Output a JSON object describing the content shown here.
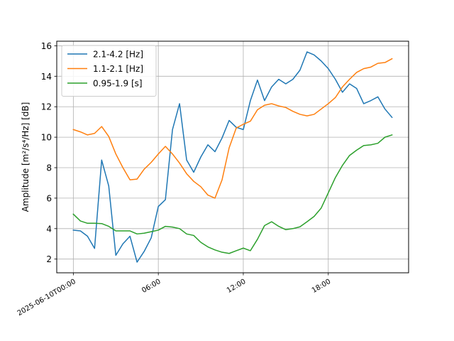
{
  "chart_data": {
    "type": "line",
    "title": "",
    "xlabel": "",
    "ylabel": "Amplitude [m²/s⁴/Hz] [dB]",
    "x_ticks": [
      {
        "t": 0,
        "label": "2025-06-10T00:00"
      },
      {
        "t": 6,
        "label": "06:00"
      },
      {
        "t": 12,
        "label": "12:00"
      },
      {
        "t": 18,
        "label": "18:00"
      }
    ],
    "y_ticks": [
      2,
      4,
      6,
      8,
      10,
      12,
      14,
      16
    ],
    "xlim": [
      -1.17,
      23.67
    ],
    "ylim": [
      1.1,
      16.3
    ],
    "grid": true,
    "legend_position": "upper-left",
    "x": [
      0,
      0.5,
      1,
      1.5,
      2,
      2.5,
      3,
      3.5,
      4,
      4.5,
      5,
      5.5,
      6,
      6.5,
      7,
      7.5,
      8,
      8.5,
      9,
      9.5,
      10,
      10.5,
      11,
      11.5,
      12,
      12.5,
      13,
      13.5,
      14,
      14.5,
      15,
      15.5,
      16,
      16.5,
      17,
      17.5,
      18,
      18.5,
      19,
      19.5,
      20,
      20.5,
      21,
      21.5,
      22,
      22.5
    ],
    "series": [
      {
        "name": "2.1-4.2 [Hz]",
        "color": "#1f77b4",
        "values": [
          3.9,
          3.85,
          3.5,
          2.7,
          8.5,
          6.8,
          2.25,
          3.0,
          3.5,
          1.8,
          2.5,
          3.4,
          5.45,
          5.9,
          10.5,
          12.2,
          8.5,
          7.7,
          8.7,
          9.5,
          9.05,
          9.95,
          11.1,
          10.65,
          10.5,
          12.4,
          13.75,
          12.4,
          13.3,
          13.8,
          13.5,
          13.8,
          14.4,
          15.6,
          15.4,
          15.0,
          14.5,
          13.8,
          12.95,
          13.5,
          13.2,
          12.2,
          12.4,
          12.65,
          11.85,
          11.3
        ]
      },
      {
        "name": "1.1-2.1 [Hz]",
        "color": "#ff7f0e",
        "values": [
          10.5,
          10.35,
          10.15,
          10.25,
          10.7,
          10.05,
          8.9,
          8.0,
          7.2,
          7.25,
          7.9,
          8.35,
          8.9,
          9.4,
          8.9,
          8.3,
          7.6,
          7.1,
          6.75,
          6.2,
          6.0,
          7.2,
          9.3,
          10.6,
          10.85,
          11.05,
          11.8,
          12.1,
          12.2,
          12.05,
          11.95,
          11.7,
          11.5,
          11.4,
          11.5,
          11.85,
          12.2,
          12.6,
          13.3,
          13.8,
          14.25,
          14.5,
          14.6,
          14.85,
          14.9,
          15.15
        ]
      },
      {
        "name": "0.95-1.9 [s]",
        "color": "#2ca02c",
        "values": [
          4.95,
          4.5,
          4.35,
          4.35,
          4.33,
          4.15,
          3.85,
          3.85,
          3.85,
          3.65,
          3.7,
          3.8,
          3.9,
          4.15,
          4.1,
          4.0,
          3.65,
          3.55,
          3.1,
          2.8,
          2.6,
          2.45,
          2.37,
          2.55,
          2.72,
          2.55,
          3.3,
          4.2,
          4.45,
          4.15,
          3.93,
          4.0,
          4.12,
          4.45,
          4.8,
          5.35,
          6.35,
          7.35,
          8.15,
          8.8,
          9.15,
          9.45,
          9.5,
          9.6,
          10.0,
          10.15
        ]
      }
    ]
  }
}
